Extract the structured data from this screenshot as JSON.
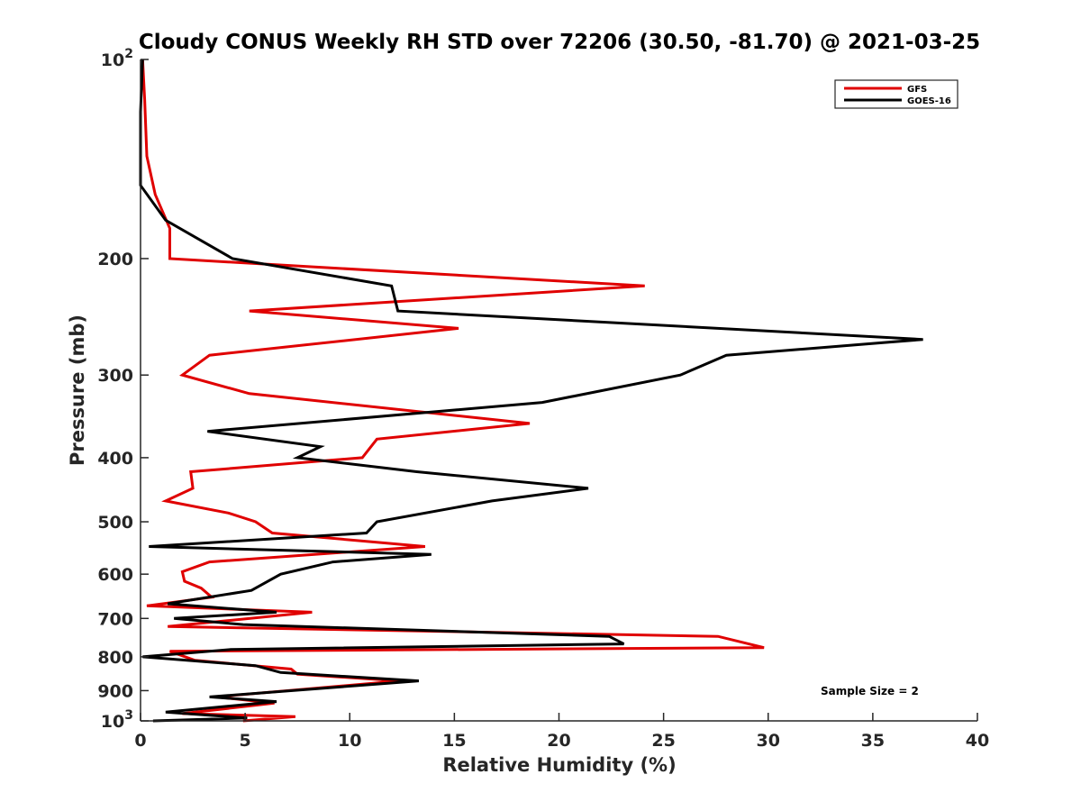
{
  "chart_data": {
    "type": "line",
    "title": "Cloudy CONUS Weekly RH STD over 72206 (30.50, -81.70) @ 2021-03-25",
    "xlabel": "Relative Humidity (%)",
    "ylabel": "Pressure (mb)",
    "xlim": [
      0,
      40
    ],
    "ylim": [
      100,
      1000
    ],
    "yscale": "log",
    "yreversed": true,
    "grid": false,
    "xticks": [
      0,
      5,
      10,
      15,
      20,
      25,
      30,
      35,
      40
    ],
    "xtick_labels": [
      "0",
      "5",
      "10",
      "15",
      "20",
      "25",
      "30",
      "35",
      "40"
    ],
    "yticks": [
      100,
      200,
      300,
      400,
      500,
      600,
      700,
      800,
      900,
      1000
    ],
    "ytick_labels": [
      {
        "base": "10",
        "exp": "2"
      },
      {
        "text": "200"
      },
      {
        "text": "300"
      },
      {
        "text": "400"
      },
      {
        "text": "500"
      },
      {
        "text": "600"
      },
      {
        "text": "700"
      },
      {
        "text": "800"
      },
      {
        "text": "900"
      },
      {
        "base": "10",
        "exp": "3"
      }
    ],
    "legend": {
      "position": "top-right",
      "entries": [
        "GFS",
        "GOES-16"
      ]
    },
    "annotation": "Sample Size = 2",
    "series": [
      {
        "name": "GFS",
        "color": "#e00000",
        "points": [
          [
            0.1,
            100
          ],
          [
            0.2,
            115
          ],
          [
            0.3,
            140
          ],
          [
            0.7,
            160
          ],
          [
            1.4,
            180
          ],
          [
            1.4,
            200
          ],
          [
            24.1,
            220
          ],
          [
            5.2,
            240
          ],
          [
            15.2,
            255
          ],
          [
            3.3,
            280
          ],
          [
            2.0,
            300
          ],
          [
            5.2,
            320
          ],
          [
            18.6,
            355
          ],
          [
            11.3,
            375
          ],
          [
            10.6,
            400
          ],
          [
            2.4,
            420
          ],
          [
            2.5,
            445
          ],
          [
            1.2,
            465
          ],
          [
            4.2,
            485
          ],
          [
            5.5,
            500
          ],
          [
            6.3,
            520
          ],
          [
            13.6,
            545
          ],
          [
            3.3,
            575
          ],
          [
            2.0,
            595
          ],
          [
            2.1,
            615
          ],
          [
            2.9,
            630
          ],
          [
            3.4,
            650
          ],
          [
            0.3,
            670
          ],
          [
            8.2,
            685
          ],
          [
            1.3,
            720
          ],
          [
            27.6,
            745
          ],
          [
            29.8,
            775
          ],
          [
            1.4,
            785
          ],
          [
            2.6,
            810
          ],
          [
            7.2,
            835
          ],
          [
            7.5,
            850
          ],
          [
            12.4,
            870
          ],
          [
            3.6,
            920
          ],
          [
            6.4,
            940
          ],
          [
            2.0,
            975
          ],
          [
            7.4,
            985
          ],
          [
            4.9,
            1000
          ]
        ]
      },
      {
        "name": "GOES-16",
        "color": "#000000",
        "points": [
          [
            0.1,
            100
          ],
          [
            0.0,
            120
          ],
          [
            0.0,
            135
          ],
          [
            0.0,
            155
          ],
          [
            1.2,
            175
          ],
          [
            4.4,
            200
          ],
          [
            12.0,
            220
          ],
          [
            12.3,
            240
          ],
          [
            37.4,
            265
          ],
          [
            28.0,
            280
          ],
          [
            25.8,
            300
          ],
          [
            19.2,
            330
          ],
          [
            3.2,
            365
          ],
          [
            8.6,
            385
          ],
          [
            7.5,
            400
          ],
          [
            13.2,
            420
          ],
          [
            21.4,
            445
          ],
          [
            16.8,
            465
          ],
          [
            11.3,
            500
          ],
          [
            10.8,
            520
          ],
          [
            0.4,
            545
          ],
          [
            13.9,
            560
          ],
          [
            9.2,
            575
          ],
          [
            6.7,
            600
          ],
          [
            5.3,
            635
          ],
          [
            1.3,
            665
          ],
          [
            6.5,
            685
          ],
          [
            1.6,
            700
          ],
          [
            4.9,
            715
          ],
          [
            22.4,
            745
          ],
          [
            23.1,
            765
          ],
          [
            4.3,
            780
          ],
          [
            0.1,
            800
          ],
          [
            5.5,
            825
          ],
          [
            6.7,
            845
          ],
          [
            13.3,
            870
          ],
          [
            3.3,
            920
          ],
          [
            6.5,
            935
          ],
          [
            1.2,
            970
          ],
          [
            5.1,
            990
          ],
          [
            0.6,
            1000
          ]
        ]
      }
    ]
  }
}
